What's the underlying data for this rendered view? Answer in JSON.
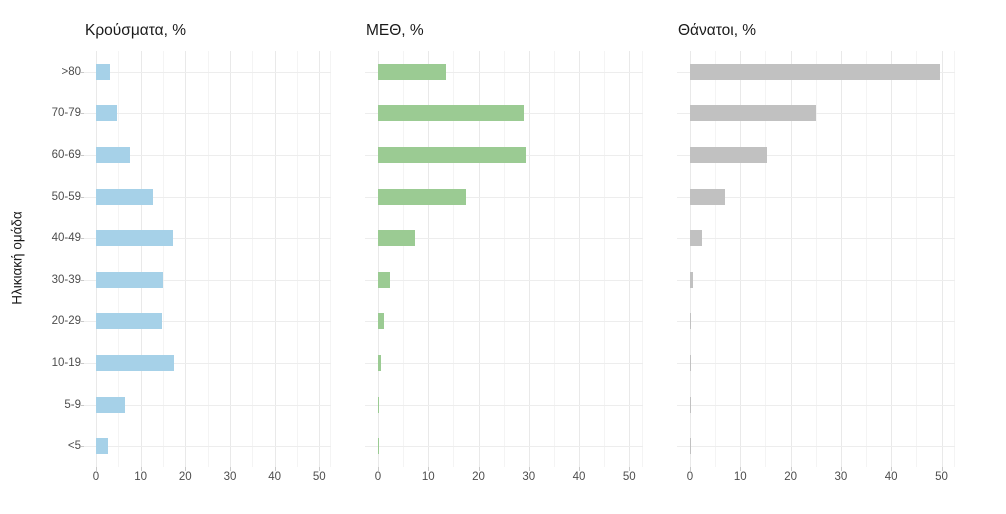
{
  "chart_data": {
    "type": "bar",
    "orientation": "horizontal",
    "ylabel": "Ηλικιακή ομάδα",
    "xlabel": "",
    "legend": "none",
    "grid": "major and minor vertical gridlines every 5 units, light horizontal gridline at each category",
    "categories": [
      ">80",
      "70-79",
      "60-69",
      "50-59",
      "40-49",
      "30-39",
      "20-29",
      "10-19",
      "5-9",
      "<5"
    ],
    "x_ticks": [
      0,
      10,
      20,
      30,
      40,
      50
    ],
    "xlim": [
      0,
      52.5
    ],
    "panels": [
      {
        "title": "Κρούσματα, %",
        "color": "#a6d1e8",
        "values": [
          3.1,
          4.6,
          7.7,
          12.8,
          17.2,
          14.9,
          14.7,
          17.5,
          6.4,
          2.6
        ]
      },
      {
        "title": "ΜΕΘ, %",
        "color": "#9bcb93",
        "values": [
          13.5,
          29.0,
          29.4,
          17.5,
          7.4,
          2.3,
          1.1,
          0.5,
          0.2,
          0.2
        ]
      },
      {
        "title": "Θάνατοι, %",
        "color": "#c1c1c1",
        "values": [
          49.7,
          25.0,
          15.4,
          7.0,
          2.3,
          0.5,
          0.15,
          0.2,
          0.05,
          0.15
        ]
      }
    ]
  },
  "colors": {
    "grid_major": "#e9e9e9",
    "grid_minor": "#f4f4f4",
    "grid_horizontal": "#ededed",
    "axis_tick": "#c9c9c9",
    "tick_label_text": "#4d4d4d",
    "title_text": "#1a1a1a"
  }
}
